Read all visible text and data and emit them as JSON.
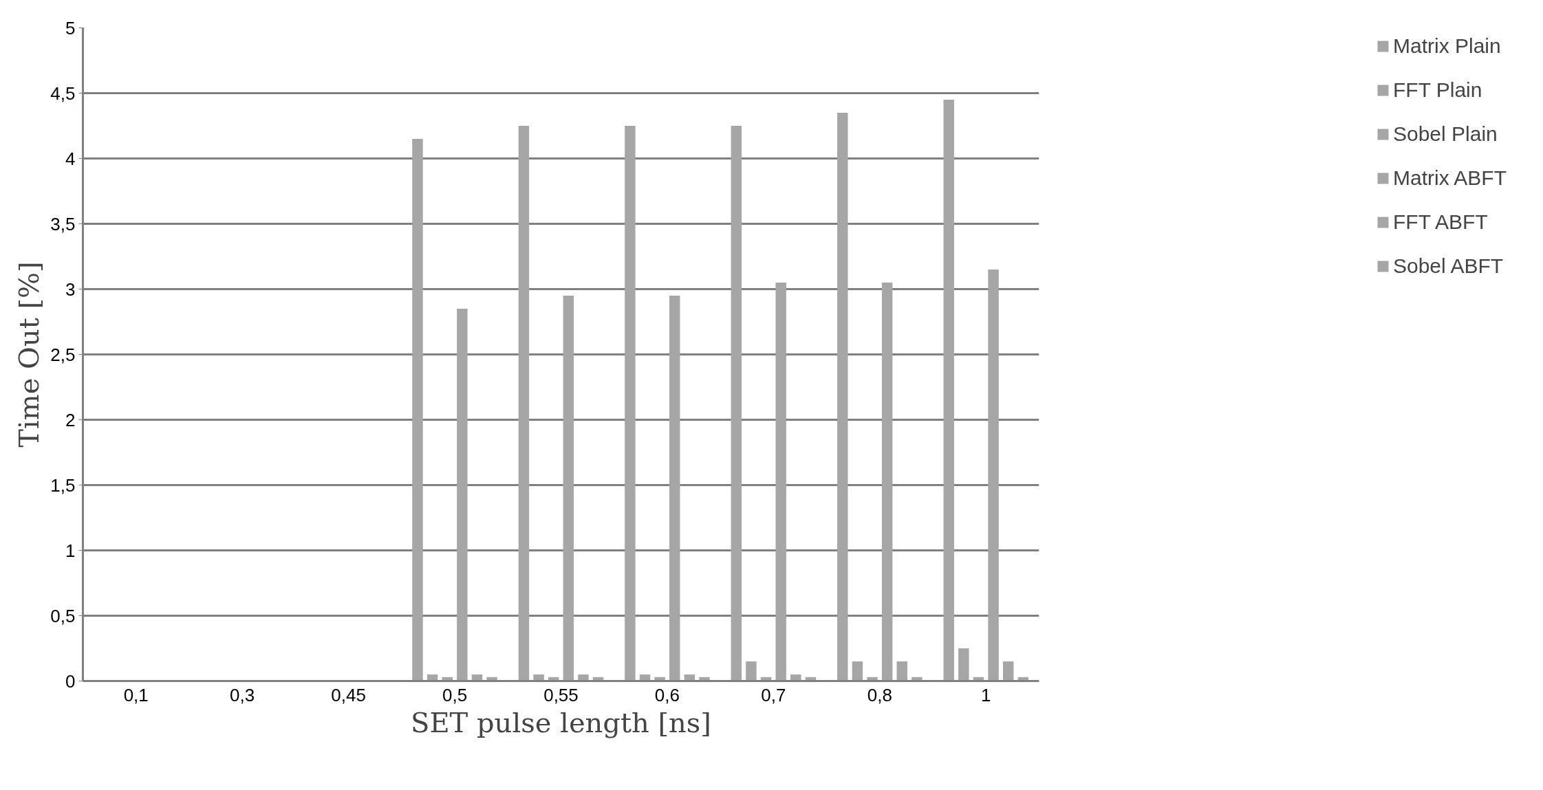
{
  "chart_data": {
    "type": "bar",
    "xlabel": "SET pulse length [ns]",
    "ylabel": "Time Out [%]",
    "categories": [
      "0,1",
      "0,3",
      "0,45",
      "0,5",
      "0,55",
      "0,6",
      "0,7",
      "0,8",
      "1"
    ],
    "series": [
      {
        "name": "Matrix Plain",
        "color": "#a6a6a6",
        "values": [
          0,
          0,
          0,
          4.15,
          4.25,
          4.25,
          4.25,
          4.35,
          4.45
        ]
      },
      {
        "name": "FFT Plain",
        "color": "#a6a6a6",
        "values": [
          0,
          0,
          0,
          0.05,
          0.05,
          0.05,
          0.15,
          0.15,
          0.25
        ]
      },
      {
        "name": "Sobel Plain",
        "color": "#a6a6a6",
        "values": [
          0,
          0,
          0,
          0.03,
          0.03,
          0.03,
          0.03,
          0.03,
          0.03
        ]
      },
      {
        "name": "Matrix ABFT",
        "color": "#a6a6a6",
        "values": [
          0,
          0,
          0,
          2.85,
          2.95,
          2.95,
          3.05,
          3.05,
          3.15
        ]
      },
      {
        "name": "FFT ABFT",
        "color": "#a6a6a6",
        "values": [
          0,
          0,
          0,
          0.05,
          0.05,
          0.05,
          0.05,
          0.15,
          0.15
        ]
      },
      {
        "name": "Sobel ABFT",
        "color": "#a6a6a6",
        "values": [
          0,
          0,
          0,
          0.03,
          0.03,
          0.03,
          0.03,
          0.03,
          0.03
        ]
      }
    ],
    "ylim": [
      0,
      5
    ],
    "yticks": [
      0,
      {
        "value": 0.5,
        "label": "0,5"
      },
      1,
      {
        "value": 1.5,
        "label": "1,5"
      },
      2,
      {
        "value": 2.5,
        "label": "2,5"
      },
      3,
      {
        "value": 3.5,
        "label": "3,5"
      },
      4,
      {
        "value": 4.5,
        "label": "4,5"
      },
      5
    ],
    "grid": "y",
    "legend": "right"
  }
}
